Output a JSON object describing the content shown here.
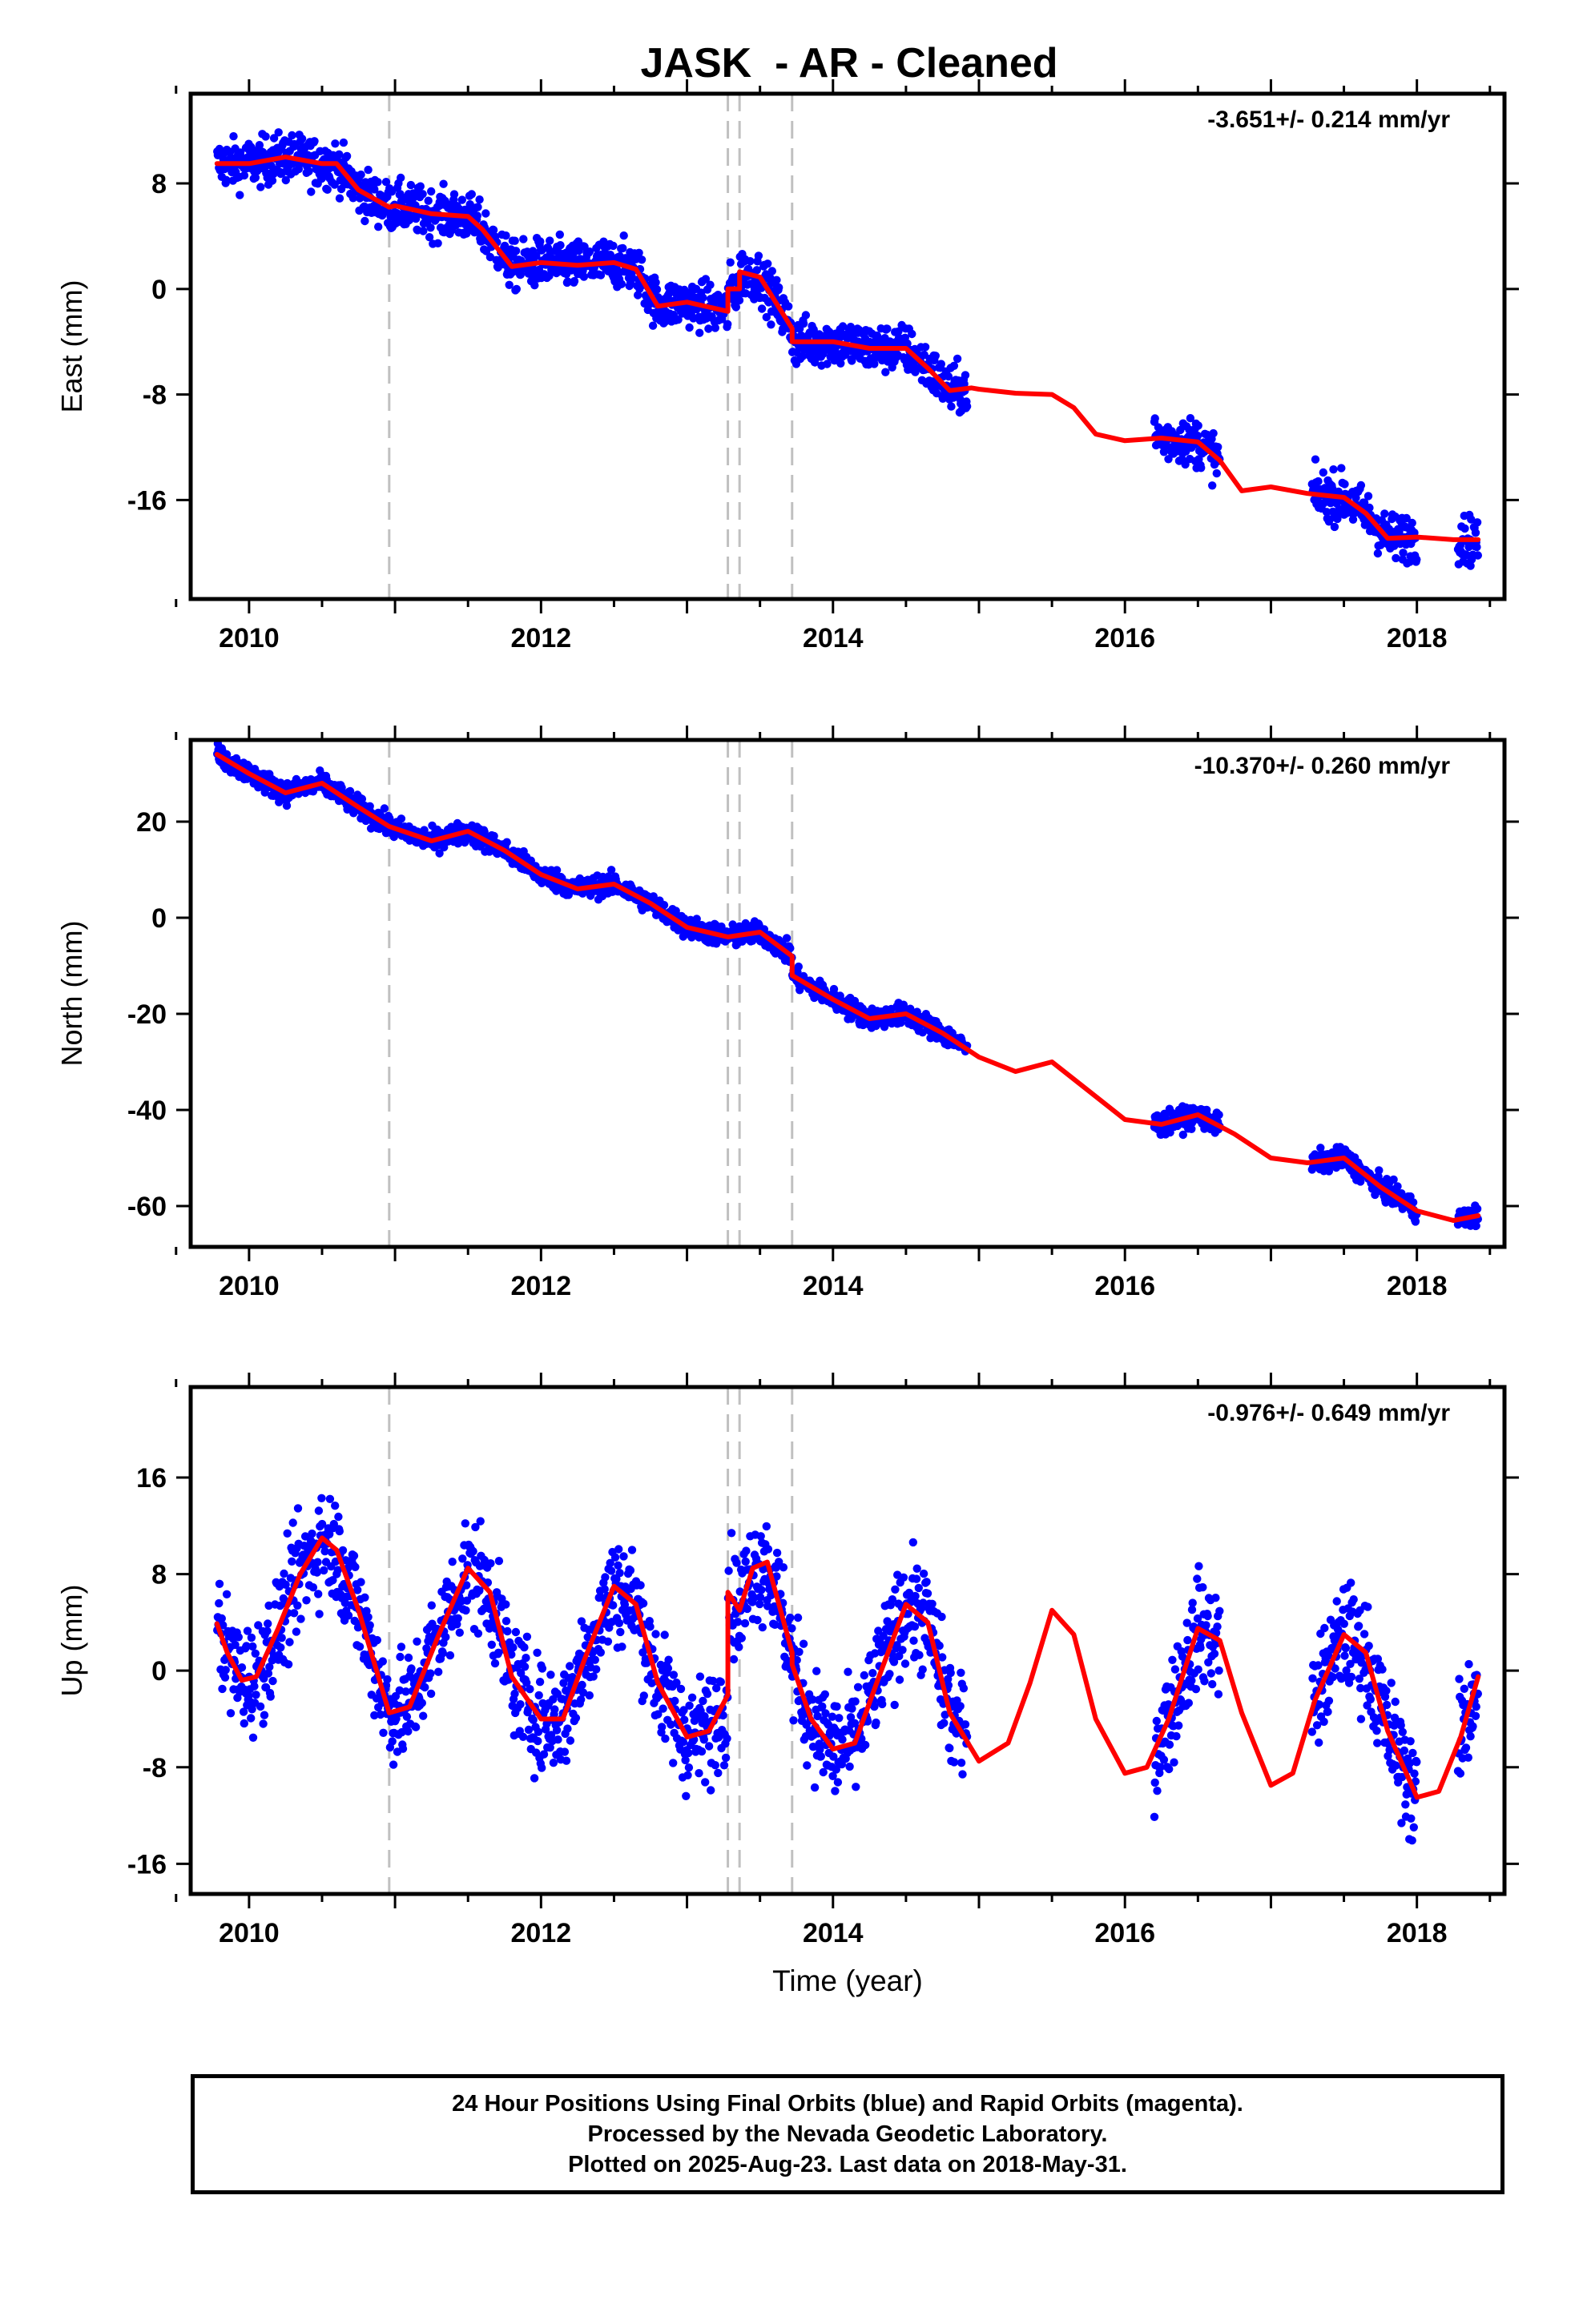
{
  "figure_title": "JASK  - AR - Cleaned",
  "xlabel": "Time (year)",
  "footer": {
    "line1": "24 Hour Positions Using Final Orbits (blue) and Rapid Orbits (magenta).",
    "line2": "Processed by the Nevada Geodetic Laboratory.",
    "line3": "Plotted on 2025-Aug-23. Last data on 2018-May-31."
  },
  "colors": {
    "data": "#0000ff",
    "model": "#ff0000",
    "events": "#c0c0c0",
    "frame": "#000000"
  },
  "chart_data": [
    {
      "type": "scatter",
      "ylabel": "East (mm)",
      "rate_label": "-3.651+/- 0.214 mm/yr",
      "xlim": [
        2009.6,
        2018.6
      ],
      "ylim": [
        -23.5,
        14.8
      ],
      "xticks": [
        2010,
        2012,
        2014,
        2016,
        2018
      ],
      "yticks": [
        8,
        0,
        -8,
        -16
      ],
      "events": [
        2010.96,
        2013.28,
        2013.36,
        2013.72
      ],
      "model": {
        "x": [
          2009.78,
          2010.0,
          2010.25,
          2010.5,
          2010.6,
          2010.75,
          2010.96,
          2011.0,
          2011.25,
          2011.5,
          2011.6,
          2011.8,
          2012.0,
          2012.25,
          2012.5,
          2012.65,
          2012.8,
          2013.0,
          2013.28,
          2013.28,
          2013.36,
          2013.36,
          2013.5,
          2013.72,
          2013.72,
          2014.0,
          2014.25,
          2014.5,
          2014.65,
          2014.8,
          2014.95,
          2015.0,
          2015.25,
          2015.5,
          2015.65,
          2015.8,
          2016.0,
          2016.25,
          2016.5,
          2016.65,
          2016.8,
          2017.0,
          2017.25,
          2017.5,
          2017.65,
          2017.8,
          2018.0,
          2018.25,
          2018.42
        ],
        "y": [
          9.5,
          9.5,
          10.0,
          9.5,
          9.5,
          7.5,
          6.2,
          6.3,
          5.7,
          5.5,
          4.5,
          1.7,
          2.0,
          1.8,
          2.0,
          1.5,
          -1.3,
          -1.0,
          -1.7,
          0.0,
          0.0,
          1.3,
          0.9,
          -3.0,
          -4.0,
          -4.0,
          -4.5,
          -4.5,
          -6.0,
          -7.7,
          -7.5,
          -7.6,
          -7.9,
          -8.0,
          -9.0,
          -11.0,
          -11.5,
          -11.3,
          -11.6,
          -13.0,
          -15.3,
          -15.0,
          -15.5,
          -15.8,
          -17.0,
          -18.9,
          -18.8,
          -19.0,
          -19.0
        ]
      },
      "observed_segments": [
        [
          2009.78,
          2010.05
        ],
        [
          2010.05,
          2010.55
        ],
        [
          2010.55,
          2010.96
        ],
        [
          2010.96,
          2011.55
        ],
        [
          2011.55,
          2012.05
        ],
        [
          2012.05,
          2012.55
        ],
        [
          2012.55,
          2013.28
        ],
        [
          2013.28,
          2013.72
        ],
        [
          2013.72,
          2014.5
        ],
        [
          2014.5,
          2014.92
        ],
        [
          2016.2,
          2016.65
        ],
        [
          2017.28,
          2018.0
        ],
        [
          2018.28,
          2018.42
        ]
      ],
      "scatter_amplitude": 1.3
    },
    {
      "type": "scatter",
      "ylabel": "North (mm)",
      "rate_label": "-10.370+/- 0.260 mm/yr",
      "xlim": [
        2009.6,
        2018.6
      ],
      "ylim": [
        -68.5,
        37
      ],
      "xticks": [
        2010,
        2012,
        2014,
        2016,
        2018
      ],
      "yticks": [
        20,
        0,
        -20,
        -40,
        -60
      ],
      "events": [
        2010.96,
        2013.28,
        2013.36,
        2013.72
      ],
      "model": {
        "x": [
          2009.78,
          2010.0,
          2010.25,
          2010.5,
          2010.75,
          2010.96,
          2011.25,
          2011.5,
          2011.75,
          2012.0,
          2012.25,
          2012.5,
          2012.75,
          2013.0,
          2013.28,
          2013.5,
          2013.72,
          2013.72,
          2014.0,
          2014.25,
          2014.5,
          2014.75,
          2015.0,
          2015.25,
          2015.5,
          2015.75,
          2016.0,
          2016.25,
          2016.5,
          2016.75,
          2017.0,
          2017.25,
          2017.5,
          2017.75,
          2018.0,
          2018.25,
          2018.42
        ],
        "y": [
          34,
          30,
          26,
          28,
          23,
          19,
          16,
          18,
          14,
          9,
          6,
          7,
          3,
          -2,
          -4,
          -3,
          -8,
          -12,
          -17,
          -21,
          -20,
          -24,
          -29,
          -32,
          -30,
          -36,
          -42,
          -43,
          -41,
          -45,
          -50,
          -51,
          -50,
          -56,
          -61,
          -63,
          -62
        ]
      },
      "observed_segments": [
        [
          2009.78,
          2010.96
        ],
        [
          2010.96,
          2013.28
        ],
        [
          2013.28,
          2013.72
        ],
        [
          2013.72,
          2014.92
        ],
        [
          2016.2,
          2016.65
        ],
        [
          2017.28,
          2018.0
        ],
        [
          2018.28,
          2018.42
        ]
      ],
      "scatter_amplitude": 1.6
    },
    {
      "type": "scatter",
      "ylabel": "Up (mm)",
      "rate_label": "-0.976+/- 0.649 mm/yr",
      "xlim": [
        2009.6,
        2018.6
      ],
      "ylim": [
        -18.5,
        23.5
      ],
      "xticks": [
        2010,
        2012,
        2014,
        2016,
        2018
      ],
      "yticks": [
        16,
        8,
        0,
        -8,
        -16
      ],
      "events": [
        2010.96,
        2013.28,
        2013.36,
        2013.72
      ],
      "model": {
        "x": [
          2009.78,
          2009.85,
          2009.95,
          2010.05,
          2010.2,
          2010.35,
          2010.5,
          2010.6,
          2010.75,
          2010.96,
          2011.1,
          2011.3,
          2011.5,
          2011.65,
          2011.8,
          2012.0,
          2012.15,
          2012.3,
          2012.5,
          2012.65,
          2012.8,
          2013.0,
          2013.15,
          2013.28,
          2013.28,
          2013.36,
          2013.45,
          2013.55,
          2013.72,
          2013.72,
          2013.85,
          2014.0,
          2014.15,
          2014.3,
          2014.5,
          2014.65,
          2014.8,
          2015.0,
          2015.2,
          2015.35,
          2015.5,
          2015.65,
          2015.8,
          2016.0,
          2016.15,
          2016.3,
          2016.5,
          2016.65,
          2016.8,
          2017.0,
          2017.15,
          2017.3,
          2017.5,
          2017.65,
          2017.8,
          2018.0,
          2018.15,
          2018.3,
          2018.42
        ],
        "y": [
          3.9,
          1.5,
          -0.8,
          -0.5,
          3.5,
          8.0,
          11.0,
          10.0,
          5.0,
          -3.5,
          -3.0,
          3.0,
          8.5,
          6.5,
          -0.5,
          -4.0,
          -4.0,
          1.0,
          7.0,
          5.5,
          -1.0,
          -5.5,
          -5.0,
          -2.0,
          6.5,
          5.0,
          8.5,
          9.0,
          1.5,
          0.5,
          -4.0,
          -6.5,
          -6.0,
          -1.0,
          5.5,
          4.0,
          -3.5,
          -7.5,
          -6.0,
          -1.0,
          5.0,
          3.0,
          -4.0,
          -8.5,
          -8.0,
          -4.0,
          3.5,
          2.5,
          -3.5,
          -9.5,
          -8.5,
          -2.5,
          3.0,
          1.5,
          -5.0,
          -10.5,
          -10.0,
          -5.5,
          -0.5
        ]
      },
      "observed_segments": [
        [
          2009.78,
          2010.96
        ],
        [
          2010.96,
          2013.28
        ],
        [
          2013.28,
          2013.72
        ],
        [
          2013.72,
          2014.92
        ],
        [
          2016.2,
          2016.65
        ],
        [
          2017.28,
          2018.0
        ],
        [
          2018.28,
          2018.42
        ]
      ],
      "scatter_amplitude": 3.2
    }
  ]
}
